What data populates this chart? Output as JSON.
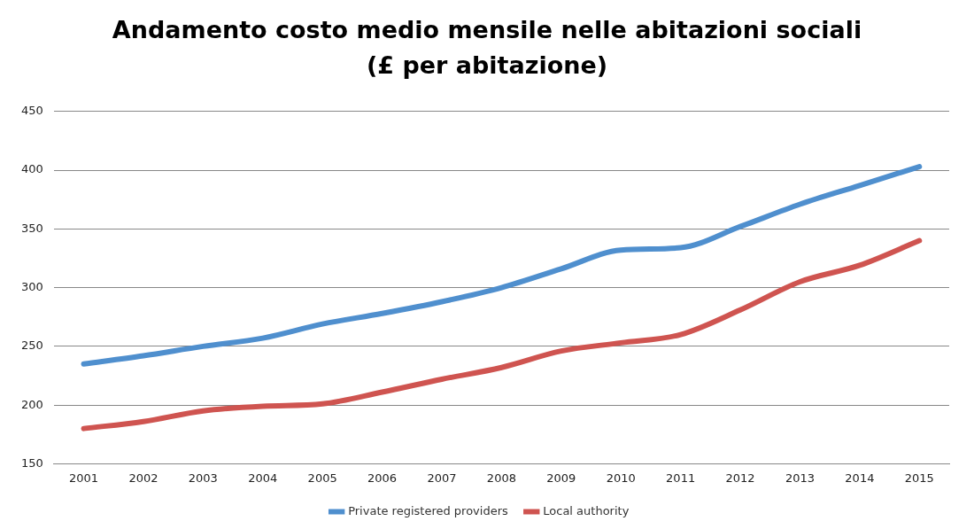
{
  "chart_data": {
    "type": "line",
    "title": "Andamento costo medio mensile nelle abitazioni sociali (£ per abitazione)",
    "categories": [
      "2001",
      "2002",
      "2003",
      "2004",
      "2005",
      "2006",
      "2007",
      "2008",
      "2009",
      "2010",
      "2011",
      "2012",
      "2013",
      "2014",
      "2015"
    ],
    "series": [
      {
        "name": "Private registered providers",
        "color": "#4f8fce",
        "values": [
          235,
          242,
          250,
          257,
          269,
          278,
          288,
          300,
          316,
          332,
          334,
          352,
          371,
          387,
          403
        ]
      },
      {
        "name": "Local authority",
        "color": "#cf5450",
        "values": [
          180,
          186,
          195,
          199,
          201,
          211,
          222,
          232,
          246,
          253,
          260,
          281,
          305,
          319,
          340
        ]
      }
    ],
    "ylim": [
      150,
      450
    ],
    "yticks": [
      150,
      200,
      250,
      300,
      350,
      400,
      450
    ],
    "grid": "y",
    "legend": "bottom",
    "marker": "none",
    "line_style": "solid"
  }
}
